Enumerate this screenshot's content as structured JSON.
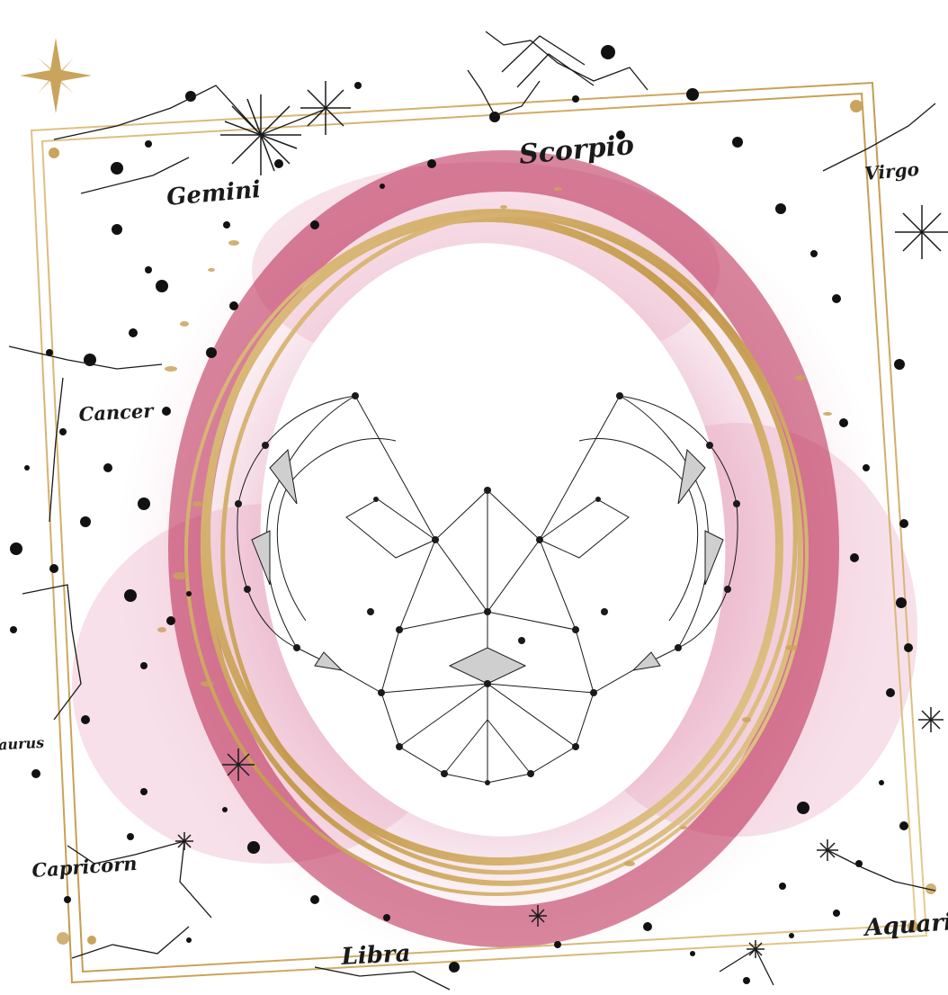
{
  "signs": {
    "scorpio": "Scorpio",
    "gemini": "Gemini",
    "virgo": "Virgo",
    "cancer": "Cancer",
    "taurus": "Taurus",
    "capricorn": "Capricorn",
    "libra": "Libra",
    "aquarius": "Aquarius"
  },
  "colors": {
    "gold": "#c9a45c",
    "pink": "#d98aa8",
    "crimson": "#b8234e",
    "ink": "#1a1a1a"
  },
  "center_icon": "aries-ram-polygon-icon"
}
